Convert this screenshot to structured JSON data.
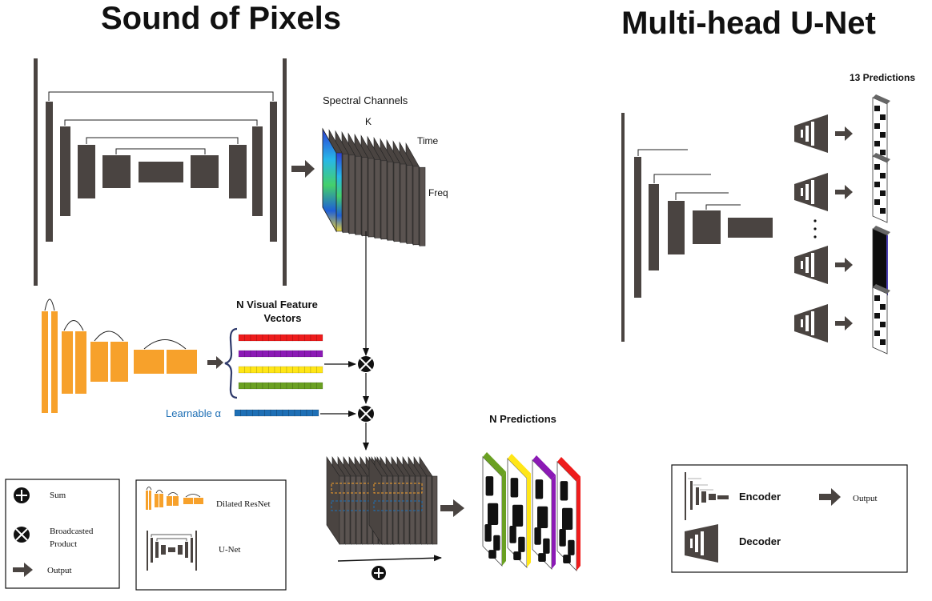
{
  "titles": {
    "left": "Sound of Pixels",
    "right": "Multi-head U-Net"
  },
  "spectrogram": {
    "label": "Spectral Channels",
    "k_label": "K",
    "time_label": "Time",
    "freq_label": "Freq"
  },
  "visual": {
    "label_line1": "N Visual Feature",
    "label_line2": "Vectors",
    "learnable_label": "Learnable α",
    "vector_colors": [
      "#ee1c1c",
      "#8b1ab5",
      "#ffe617",
      "#6aa022"
    ],
    "alpha_color": "#1e6fb5"
  },
  "predictions": {
    "left_label": "N Predictions",
    "right_label": "13 Predictions",
    "edge_colors": [
      "#6aa022",
      "#ffe617",
      "#8b1ab5",
      "#ee1c1c"
    ]
  },
  "legend_left": {
    "sum": "Sum",
    "product_line1": "Broadcasted",
    "product_line2": "Product",
    "output": "Output"
  },
  "legend_mid": {
    "dilated": "Dilated ResNet",
    "unet": "U-Net"
  },
  "legend_right": {
    "encoder": "Encoder",
    "decoder": "Decoder",
    "output": "Output"
  },
  "colors": {
    "block": "#4a4441",
    "orange": "#f7a12b",
    "blue": "#1e6fb5"
  }
}
